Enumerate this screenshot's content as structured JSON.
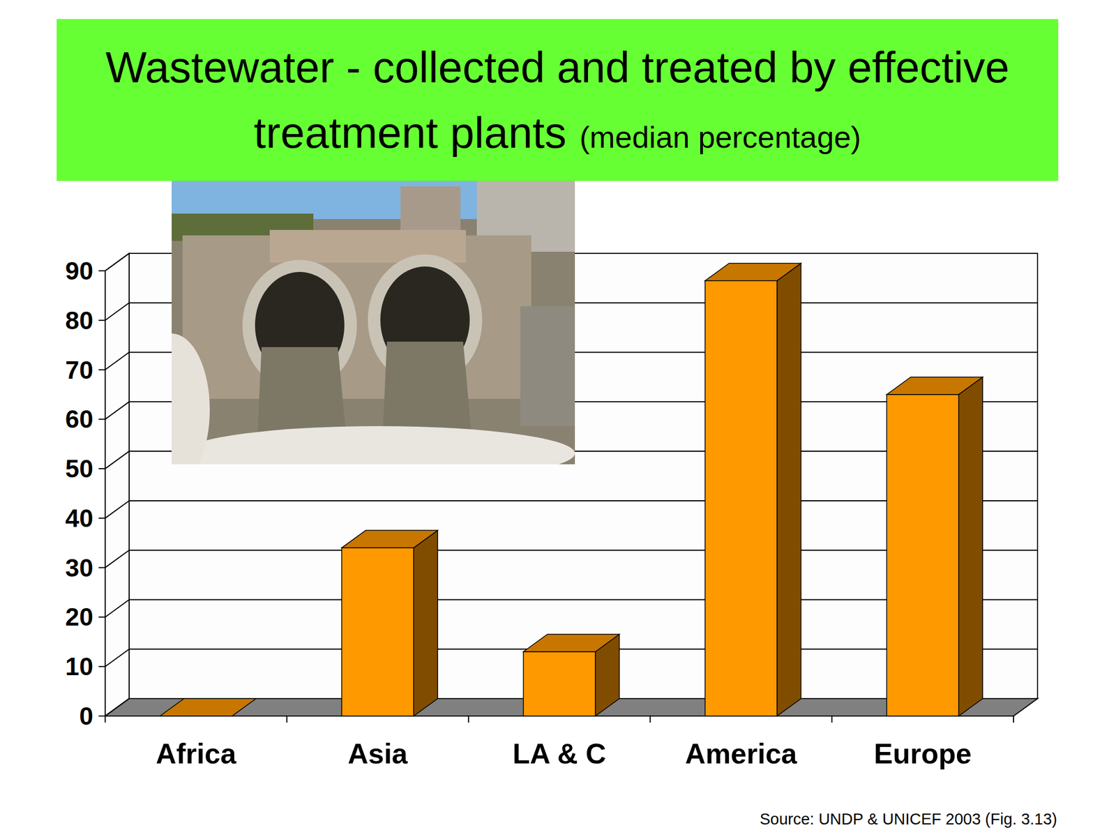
{
  "chart_data": {
    "type": "bar",
    "title": "Wastewater - collected and treated by effective treatment plants",
    "subtitle": "(median percentage)",
    "categories": [
      "Africa",
      "Asia",
      "LA & C",
      "America",
      "Europe"
    ],
    "values": [
      0,
      34,
      13,
      88,
      65
    ],
    "color": "#ff9900",
    "ylim": [
      0,
      90
    ],
    "yticks": [
      0,
      10,
      20,
      30,
      40,
      50,
      60,
      70,
      80,
      90
    ],
    "grid": true,
    "source": "Source: UNDP & UNICEF 2003 (Fig. 3.13)"
  }
}
